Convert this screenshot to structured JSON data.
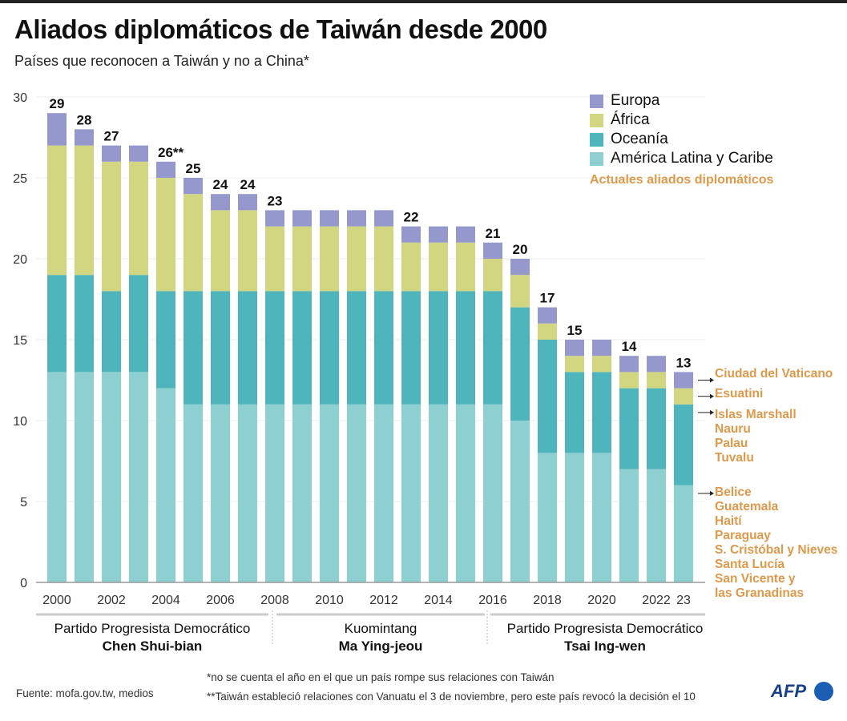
{
  "title": "Aliados diplomáticos de Taiwán desde 2000",
  "subtitle": "Países que reconocen a Taiwán y no a China*",
  "chart_data": {
    "type": "bar",
    "stacked": true,
    "categories": [
      "2000",
      "2001",
      "2002",
      "2003",
      "2004",
      "2005",
      "2006",
      "2007",
      "2008",
      "2009",
      "2010",
      "2011",
      "2012",
      "2013",
      "2014",
      "2015",
      "2016",
      "2017",
      "2018",
      "2019",
      "2020",
      "2021",
      "2022",
      "2023"
    ],
    "x_tick_labels": [
      "2000",
      "2002",
      "2004",
      "2006",
      "2008",
      "2010",
      "2012",
      "2014",
      "2016",
      "2018",
      "2020",
      "2022",
      "23"
    ],
    "x_tick_years": [
      "2000",
      "2002",
      "2004",
      "2006",
      "2008",
      "2010",
      "2012",
      "2014",
      "2016",
      "2018",
      "2020",
      "2022",
      "2023"
    ],
    "y_ticks": [
      "0",
      "5",
      "10",
      "15",
      "20",
      "25",
      "30"
    ],
    "ylim": [
      0,
      30
    ],
    "grid": true,
    "legend_placement": "top-right",
    "series": [
      {
        "name": "América Latina y Caribe",
        "color": "#8ecfd2",
        "values": [
          13,
          13,
          13,
          13,
          12,
          11,
          11,
          11,
          11,
          11,
          11,
          11,
          11,
          11,
          11,
          11,
          11,
          10,
          8,
          8,
          8,
          7,
          7,
          6
        ]
      },
      {
        "name": "Oceanía",
        "color": "#4db5bb",
        "values": [
          6,
          6,
          5,
          6,
          6,
          7,
          7,
          7,
          7,
          7,
          7,
          7,
          7,
          7,
          7,
          7,
          7,
          7,
          7,
          5,
          5,
          5,
          5,
          5
        ]
      },
      {
        "name": "África",
        "color": "#d2d680",
        "values": [
          8,
          8,
          8,
          7,
          7,
          6,
          5,
          5,
          4,
          4,
          4,
          4,
          4,
          3,
          3,
          3,
          2,
          2,
          1,
          1,
          1,
          1,
          1,
          1
        ]
      },
      {
        "name": "Europa",
        "color": "#9498cc",
        "values": [
          2,
          1,
          1,
          1,
          1,
          1,
          1,
          1,
          1,
          1,
          1,
          1,
          1,
          1,
          1,
          1,
          1,
          1,
          1,
          1,
          1,
          1,
          1,
          1
        ]
      }
    ],
    "data_labels": [
      {
        "year": "2000",
        "text": "29"
      },
      {
        "year": "2001",
        "text": "28"
      },
      {
        "year": "2002",
        "text": "27"
      },
      {
        "year": "2004",
        "text": "26**"
      },
      {
        "year": "2005",
        "text": "25"
      },
      {
        "year": "2006",
        "text": "24"
      },
      {
        "year": "2007",
        "text": "24"
      },
      {
        "year": "2008",
        "text": "23"
      },
      {
        "year": "2013",
        "text": "22"
      },
      {
        "year": "2016",
        "text": "21"
      },
      {
        "year": "2017",
        "text": "20"
      },
      {
        "year": "2018",
        "text": "17"
      },
      {
        "year": "2019",
        "text": "15"
      },
      {
        "year": "2021",
        "text": "14"
      },
      {
        "year": "2023",
        "text": "13"
      }
    ]
  },
  "legend": {
    "items": [
      {
        "name": "Europa",
        "color": "#9498cc"
      },
      {
        "name": "África",
        "color": "#d2d680"
      },
      {
        "name": "Oceanía",
        "color": "#4db5bb"
      },
      {
        "name": "América Latina y Caribe",
        "color": "#8ecfd2"
      }
    ],
    "note": "Actuales aliados diplomáticos"
  },
  "current_allies": {
    "europa": "Ciudad del Vaticano",
    "africa": "Esuatini",
    "oceania": [
      "Islas Marshall",
      "Nauru",
      "Palau",
      "Tuvalu"
    ],
    "latam": [
      "Belice",
      "Guatemala",
      "Haití",
      "Paraguay",
      "S. Cristóbal y Nieves",
      "Santa Lucía",
      "San Vicente y",
      "las Granadinas"
    ]
  },
  "periods": [
    {
      "party": "Partido Progresista Democrático",
      "leader": "Chen Shui-bian"
    },
    {
      "party": "Kuomintang",
      "leader": "Ma Ying-jeou"
    },
    {
      "party": "Partido Progresista Democrático",
      "leader": "Tsai Ing-wen"
    }
  ],
  "footer": {
    "source": "Fuente: mofa.gov.tw, medios",
    "note1": "*no se cuenta el año en el que un país rompe sus relaciones con Taiwán",
    "note2": "**Taiwán estableció relaciones con Vanuatu el 3 de noviembre, pero este país revocó la decisión el 10",
    "logo": "AFP"
  }
}
